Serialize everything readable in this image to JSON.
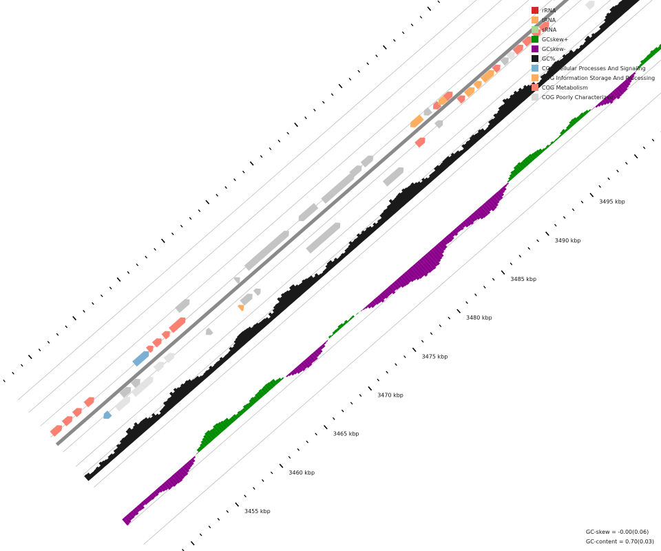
{
  "legend": [
    {
      "label": "rRNA",
      "color": "#d62728"
    },
    {
      "label": "tRNA",
      "color": "#fdae61"
    },
    {
      "label": "sRNA",
      "color": "#a6d89a"
    },
    {
      "label": "GCskew+",
      "color": "#008c00"
    },
    {
      "label": "GCskew-",
      "color": "#8b008b"
    },
    {
      "label": "GC%",
      "color": "#1a1a1a"
    },
    {
      "label": "COG Cellular Processes And Signaling",
      "color": "#7bafd4"
    },
    {
      "label": "COG Information Storage And Processing",
      "color": "#fdae61"
    },
    {
      "label": "COG Metabolism",
      "color": "#fa8072"
    },
    {
      "label": "COG Poorly Characterized",
      "color": "#d9d9d9"
    }
  ],
  "axis": {
    "unit": "kbp",
    "major_ticks": [
      {
        "value": 3455,
        "label": "3455 kbp"
      },
      {
        "value": 3460,
        "label": "3460 kbp"
      },
      {
        "value": 3465,
        "label": "3465 kbp"
      },
      {
        "value": 3470,
        "label": "3470 kbp"
      },
      {
        "value": 3475,
        "label": "3475 kbp"
      },
      {
        "value": 3480,
        "label": "3480 kbp"
      },
      {
        "value": 3485,
        "label": "3485 kbp"
      },
      {
        "value": 3490,
        "label": "3490 kbp"
      },
      {
        "value": 3495,
        "label": "3495 kbp"
      }
    ]
  },
  "stats": {
    "gc_skew": "GC-skew = -0.00(0.06)",
    "gc_content": "GC-content = 0.70(0.03)"
  }
}
